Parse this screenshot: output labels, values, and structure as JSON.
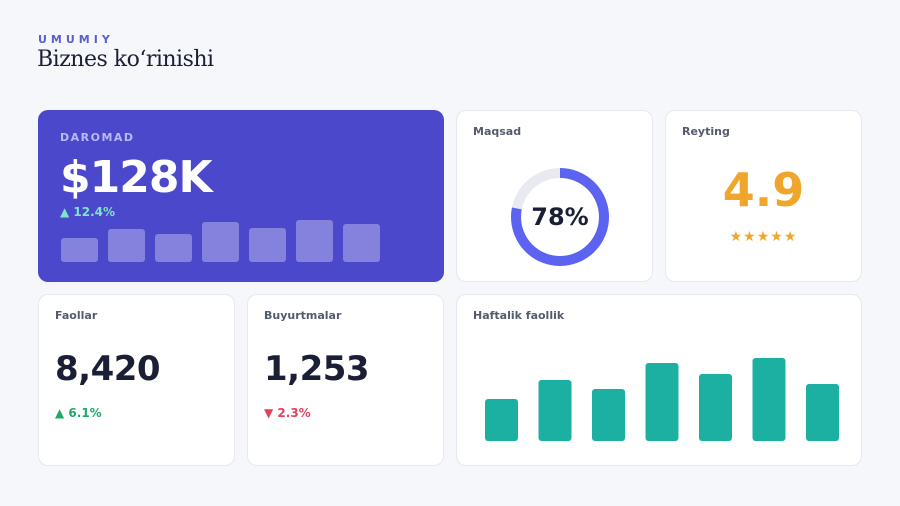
{
  "header": {
    "eyebrow": "UMUMIY",
    "title": "Biznes koʻrinishi"
  },
  "revenue": {
    "label": "DAROMAD",
    "value": "$128K",
    "delta": "▲ 12.4%",
    "sparkline": [
      24,
      33,
      28,
      40,
      34,
      42,
      38
    ]
  },
  "goal": {
    "label": "Maqsad",
    "value": "78%",
    "percent": 78
  },
  "rating": {
    "label": "Reyting",
    "value": "4.9",
    "stars": "★★★★★"
  },
  "active": {
    "label": "Faollar",
    "value": "8,420",
    "delta": "▲ 6.1%"
  },
  "orders": {
    "label": "Buyurtmalar",
    "value": "1,253",
    "delta": "▼ 2.3%"
  },
  "weekly": {
    "label": "Haftalik faollik",
    "values": [
      42,
      61,
      52,
      78,
      67,
      83,
      57
    ]
  },
  "colors": {
    "accent": "#4b48cc",
    "goal_ring": "#5b63f0",
    "rating": "#f0a62a",
    "weekly_bar": "#1bb0a2",
    "positive": "#1faa6b",
    "negative": "#e0435a"
  }
}
